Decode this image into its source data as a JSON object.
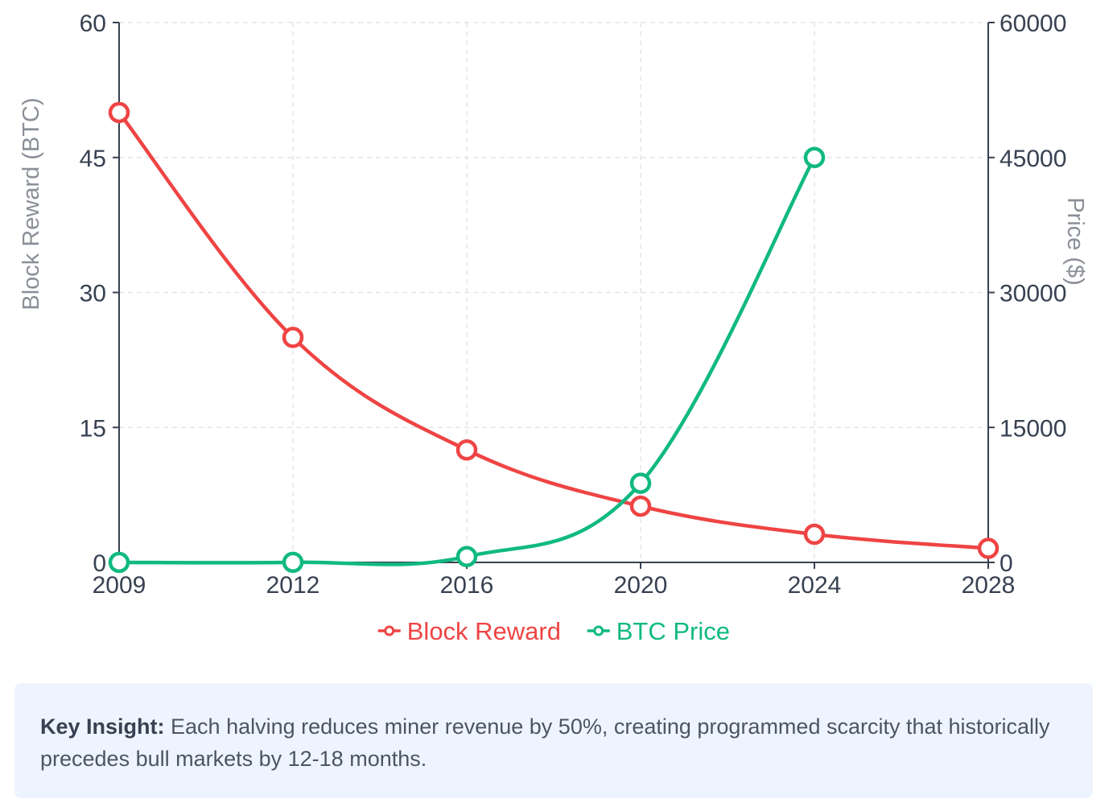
{
  "chart_data": {
    "type": "line",
    "title": "",
    "x": [
      "2009",
      "2012",
      "2016",
      "2020",
      "2024",
      "2028"
    ],
    "series": [
      {
        "name": "Block Reward",
        "axis": "left",
        "color": "#ef4444",
        "values": [
          50,
          25,
          12.5,
          6.25,
          3.125,
          1.5625
        ]
      },
      {
        "name": "BTC Price",
        "axis": "right",
        "color": "#10b981",
        "values": [
          0,
          12,
          650,
          8800,
          45000,
          null
        ]
      }
    ],
    "y_left": {
      "label": "Block Reward (BTC)",
      "ticks": [
        "0",
        "15",
        "30",
        "45",
        "60"
      ],
      "range": [
        0,
        60
      ]
    },
    "y_right": {
      "label": "Price ($)",
      "ticks": [
        "0",
        "15000",
        "30000",
        "45000",
        "60000"
      ],
      "range": [
        0,
        60000
      ]
    },
    "grid": true,
    "legend": "bottom-center"
  },
  "insight": {
    "label": "Key Insight:",
    "text": "Each halving reduces miner revenue by 50%, creating programmed scarcity that historically precedes bull markets by 12-18 months."
  }
}
